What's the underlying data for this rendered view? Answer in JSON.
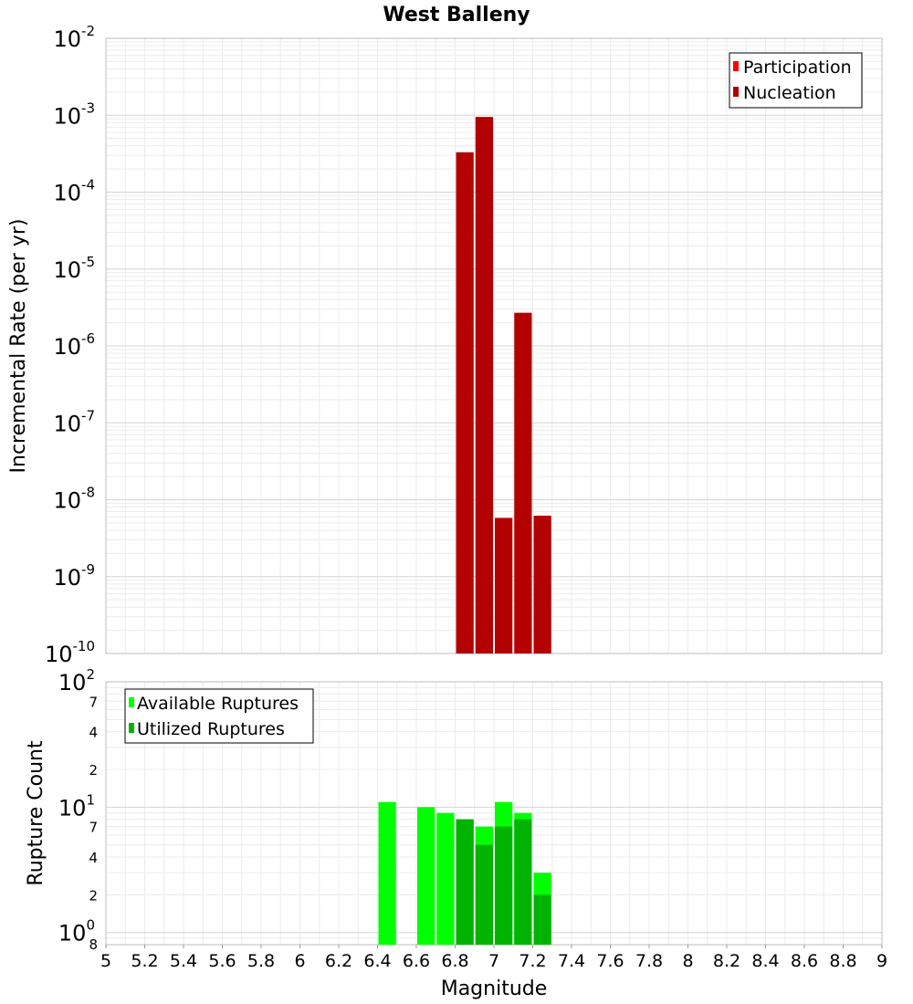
{
  "chart_data": [
    {
      "type": "bar",
      "title": "West Balleny",
      "ylabel": "Incremental Rate (per yr)",
      "yscale": "log",
      "xlim": [
        5,
        9
      ],
      "ylim": [
        1e-10,
        0.01
      ],
      "grid": true,
      "legend_position": "top-right",
      "ytick_exponents": [
        "-2",
        "-3",
        "-4",
        "-5",
        "-6",
        "-7",
        "-8",
        "-9",
        "-10"
      ],
      "ytick_base": "10",
      "bin_width": 0.1,
      "series": [
        {
          "name": "Participation",
          "color": "#ff0000",
          "x": [],
          "values": []
        },
        {
          "name": "Nucleation",
          "color": "#b30000",
          "x": [
            6.85,
            6.95,
            7.05,
            7.15,
            7.25
          ],
          "values": [
            0.00033,
            0.00095,
            5.8e-09,
            2.7e-06,
            6.2e-09
          ]
        }
      ]
    },
    {
      "type": "bar",
      "title": "",
      "xlabel": "Magnitude",
      "ylabel": "Rupture Count",
      "yscale": "log",
      "xlim": [
        5,
        9
      ],
      "ylim": [
        0.8,
        100
      ],
      "grid": true,
      "legend_position": "top-left",
      "x_tick_labels": [
        "5",
        "5.2",
        "5.4",
        "5.6",
        "5.8",
        "6",
        "6.2",
        "6.4",
        "6.6",
        "6.8",
        "7",
        "7.2",
        "7.4",
        "7.6",
        "7.8",
        "8",
        "8.2",
        "8.4",
        "8.6",
        "8.8",
        "9"
      ],
      "y_major_ticks": [
        {
          "value": 1,
          "base": "10",
          "exp": "0"
        },
        {
          "value": 10,
          "base": "10",
          "exp": "1"
        },
        {
          "value": 100,
          "base": "10",
          "exp": "2"
        }
      ],
      "y_minor_ticks": [
        {
          "value": 0.8,
          "label": "8"
        },
        {
          "value": 2,
          "label": "2"
        },
        {
          "value": 4,
          "label": "4"
        },
        {
          "value": 7,
          "label": "7"
        },
        {
          "value": 20,
          "label": "2"
        },
        {
          "value": 40,
          "label": "4"
        },
        {
          "value": 70,
          "label": "7"
        }
      ],
      "bin_width": 0.1,
      "series": [
        {
          "name": "Available Ruptures",
          "color": "#00ff00",
          "x": [
            6.45,
            6.65,
            6.75,
            6.85,
            6.95,
            7.05,
            7.15,
            7.25
          ],
          "values": [
            11,
            10,
            9,
            8,
            7,
            11,
            9,
            3
          ]
        },
        {
          "name": "Utilized Ruptures",
          "color": "#00b300",
          "x": [
            6.85,
            6.95,
            7.05,
            7.15,
            7.25
          ],
          "values": [
            8,
            5,
            7,
            8,
            2
          ]
        }
      ]
    }
  ]
}
